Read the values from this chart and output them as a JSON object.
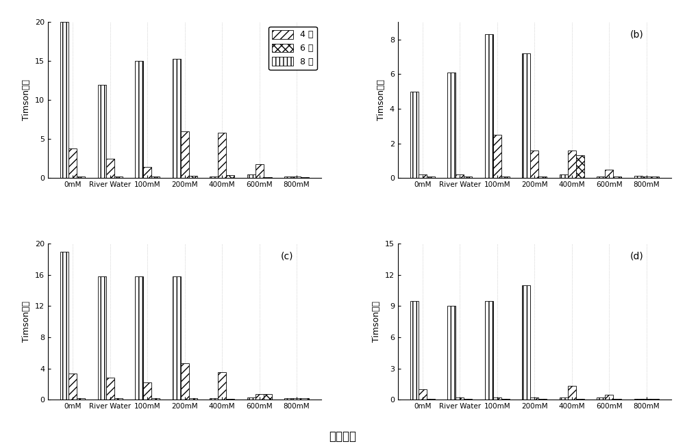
{
  "categories": [
    "0mM",
    "River Water",
    "100mM",
    "200mM",
    "400mM",
    "600mM",
    "800mM"
  ],
  "subplot_labels": [
    "",
    "(b)",
    "(c)",
    "(d)"
  ],
  "ylabel": "Timson指数",
  "xlabel": "盐分含量",
  "legend_labels": [
    "4 天",
    "6 天",
    "8 天"
  ],
  "ylims": [
    20,
    9,
    20,
    15
  ],
  "yticks": [
    [
      0,
      5,
      10,
      15,
      20
    ],
    [
      0,
      2,
      4,
      6,
      8
    ],
    [
      0,
      4,
      8,
      12,
      16,
      20
    ],
    [
      0,
      3,
      6,
      9,
      12,
      15
    ]
  ],
  "data": {
    "a": {
      "day8": [
        20.0,
        12.0,
        15.0,
        15.3,
        0.2,
        0.5,
        0.2
      ],
      "day4": [
        3.8,
        2.5,
        1.4,
        6.0,
        5.8,
        1.8,
        0.2
      ],
      "day6": [
        0.2,
        0.2,
        0.2,
        0.3,
        0.4,
        0.1,
        0.1
      ]
    },
    "b": {
      "day8": [
        5.0,
        6.1,
        8.3,
        7.2,
        0.2,
        0.1,
        0.15
      ],
      "day4": [
        0.2,
        0.2,
        2.5,
        1.6,
        1.6,
        0.5,
        0.1
      ],
      "day6": [
        0.1,
        0.1,
        0.1,
        0.1,
        1.3,
        0.1,
        0.1
      ]
    },
    "c": {
      "day8": [
        19.0,
        15.8,
        15.8,
        15.8,
        0.15,
        0.3,
        0.2
      ],
      "day4": [
        3.3,
        2.8,
        2.2,
        4.7,
        3.5,
        0.7,
        0.2
      ],
      "day6": [
        0.2,
        0.2,
        0.2,
        0.2,
        0.1,
        0.7,
        0.15
      ]
    },
    "d": {
      "day8": [
        9.5,
        9.0,
        9.5,
        11.0,
        0.2,
        0.2,
        0.1
      ],
      "day4": [
        1.0,
        0.2,
        0.2,
        0.2,
        1.3,
        0.5,
        0.1
      ],
      "day6": [
        0.1,
        0.1,
        0.1,
        0.1,
        0.1,
        0.1,
        0.1
      ]
    }
  },
  "bar_width": 0.22,
  "hatch_day4": "///",
  "hatch_day6": "xxx",
  "hatch_day8": "|||",
  "face_color": "white",
  "edge_color": "black"
}
